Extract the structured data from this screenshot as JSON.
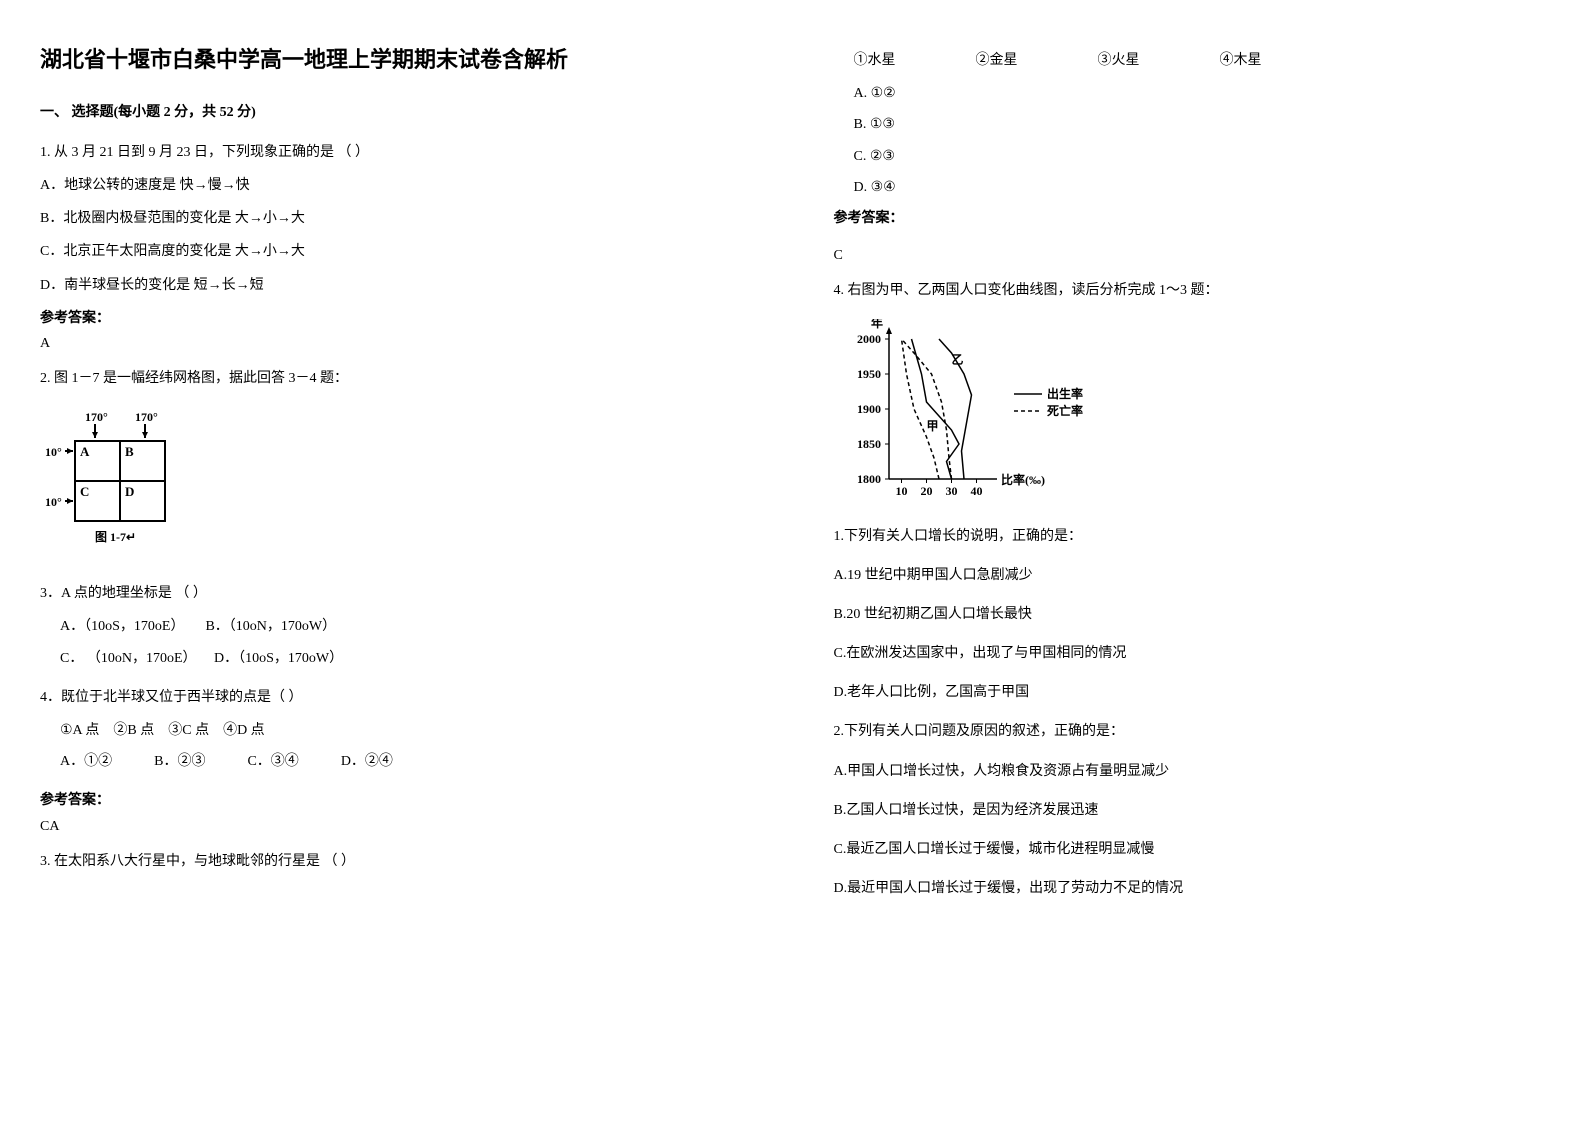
{
  "title": "湖北省十堰市白桑中学高一地理上学期期末试卷含解析",
  "section1": {
    "header": "一、 选择题(每小题 2 分，共 52 分)"
  },
  "q1": {
    "stem": "1. 从 3 月 21 日到 9 月 23 日，下列现象正确的是 （        ）",
    "optA": "A．地球公转的速度是 快→慢→快",
    "optB": "B．北极圈内极昼范围的变化是 大→小→大",
    "optC": "C．北京正午太阳高度的变化是 大→小→大",
    "optD": "D．南半球昼长的变化是 短→长→短",
    "answerLabel": "参考答案：",
    "answer": "A"
  },
  "q2": {
    "stem": "2. 图 1－7 是一幅经纬网格图，据此回答 3－4 题：",
    "chart": {
      "top_labels": [
        "170°",
        "170°"
      ],
      "left_labels": [
        "10°",
        "10°"
      ],
      "cells": [
        "A",
        "B",
        "C",
        "D"
      ],
      "caption": "图 1-7↵",
      "stroke": "#000000",
      "fontsize": 12
    },
    "q3_stem": "3．A 点的地理坐标是  （            ）",
    "q3_optA": "A．（10oS，170oE）",
    "q3_optB": "B．（10oN，170oW）",
    "q3_optC": "C． （10oN，170oE）",
    "q3_optD": "D．（10oS，170oW）",
    "q4_stem": "4．既位于北半球又位于西半球的点是（          ）",
    "q4_items": "①A 点    ②B 点    ③C 点    ④D 点",
    "q4_optA": "A．①②",
    "q4_optB": "B．②③",
    "q4_optC": "C．③④",
    "q4_optD": "D．②④",
    "answerLabel": "参考答案：",
    "answer": "CA"
  },
  "q3": {
    "stem": "3. 在太阳系八大行星中，与地球毗邻的行星是 （        ）",
    "item1": "①水星",
    "item2": "②金星",
    "item3": "③火星",
    "item4": "④木星",
    "optA": "A. ①②",
    "optB": "B.  ①③",
    "optC": "C.  ②③",
    "optD": "D. ③④",
    "answerLabel": "参考答案：",
    "answer": "C"
  },
  "q4": {
    "stem": "4. 右图为甲、乙两国人口变化曲线图，读后分析完成 1～3 题：",
    "chart": {
      "ylabel": "年",
      "yticks": [
        1800,
        1850,
        1900,
        1950,
        2000
      ],
      "xlabel": "比率(‰)",
      "xticks": [
        10,
        20,
        30,
        40
      ],
      "legend_birth": "出生率",
      "legend_death": "死亡率",
      "label_jia": "甲",
      "label_yi": "乙",
      "stroke": "#000000",
      "birth_style": "solid",
      "death_style": "dashed",
      "fontsize": 12,
      "jia_birth": [
        [
          30,
          1800
        ],
        [
          28,
          1825
        ],
        [
          33,
          1850
        ],
        [
          30,
          1870
        ],
        [
          20,
          1910
        ],
        [
          18,
          1950
        ],
        [
          14,
          2000
        ]
      ],
      "jia_death": [
        [
          25,
          1800
        ],
        [
          23,
          1830
        ],
        [
          20,
          1860
        ],
        [
          15,
          1900
        ],
        [
          12,
          1950
        ],
        [
          10,
          2000
        ]
      ],
      "yi_birth": [
        [
          35,
          1800
        ],
        [
          34,
          1840
        ],
        [
          36,
          1880
        ],
        [
          38,
          1920
        ],
        [
          35,
          1950
        ],
        [
          30,
          1980
        ],
        [
          25,
          2000
        ]
      ],
      "yi_death": [
        [
          30,
          1800
        ],
        [
          29,
          1830
        ],
        [
          28,
          1870
        ],
        [
          26,
          1910
        ],
        [
          22,
          1950
        ],
        [
          15,
          1980
        ],
        [
          10,
          2000
        ]
      ]
    },
    "sub1_stem": "1.下列有关人口增长的说明，正确的是：",
    "sub1_optA": "A.19 世纪中期甲国人口急剧减少",
    "sub1_optB": "B.20 世纪初期乙国人口增长最快",
    "sub1_optC": "C.在欧洲发达国家中，出现了与甲国相同的情况",
    "sub1_optD": "D.老年人口比例，乙国高于甲国",
    "sub2_stem": "2.下列有关人口问题及原因的叙述，正确的是：",
    "sub2_optA": "A.甲国人口增长过快，人均粮食及资源占有量明显减少",
    "sub2_optB": "B.乙国人口增长过快，是因为经济发展迅速",
    "sub2_optC": "C.最近乙国人口增长过于缓慢，城市化进程明显减慢",
    "sub2_optD": "D.最近甲国人口增长过于缓慢，出现了劳动力不足的情况"
  }
}
